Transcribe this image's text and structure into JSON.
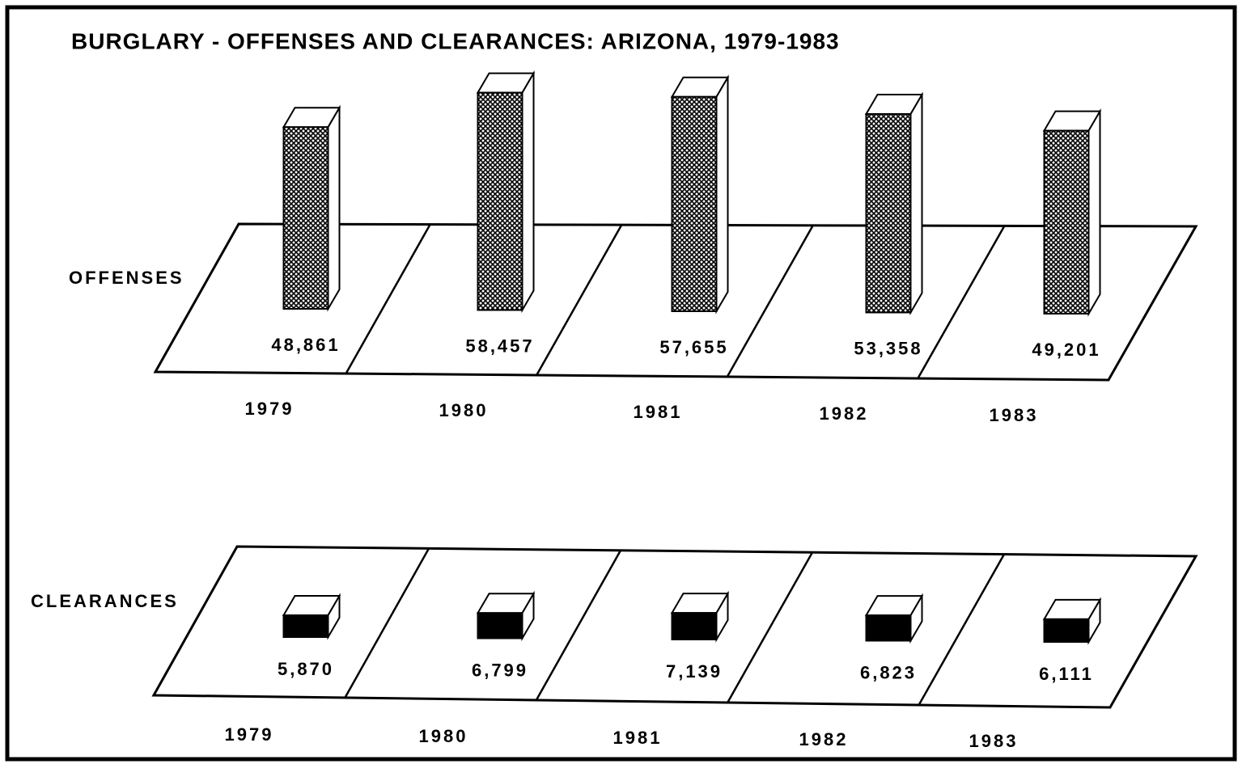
{
  "chart_data": {
    "type": "bar3d",
    "title": "BURGLARY - OFFENSES AND CLEARANCES:  ARIZONA, 1979-1983",
    "categories": [
      "1979",
      "1980",
      "1981",
      "1982",
      "1983"
    ],
    "series": [
      {
        "name": "OFFENSES",
        "values": [
          48861,
          58457,
          57655,
          53358,
          49201
        ],
        "value_labels": [
          "48,861",
          "58,457",
          "57,655",
          "53,358",
          "49,201"
        ]
      },
      {
        "name": "CLEARANCES",
        "values": [
          5870,
          6799,
          7139,
          6823,
          6111
        ],
        "value_labels": [
          "5,870",
          "6,799",
          "7,139",
          "6,823",
          "6,111"
        ]
      }
    ]
  }
}
